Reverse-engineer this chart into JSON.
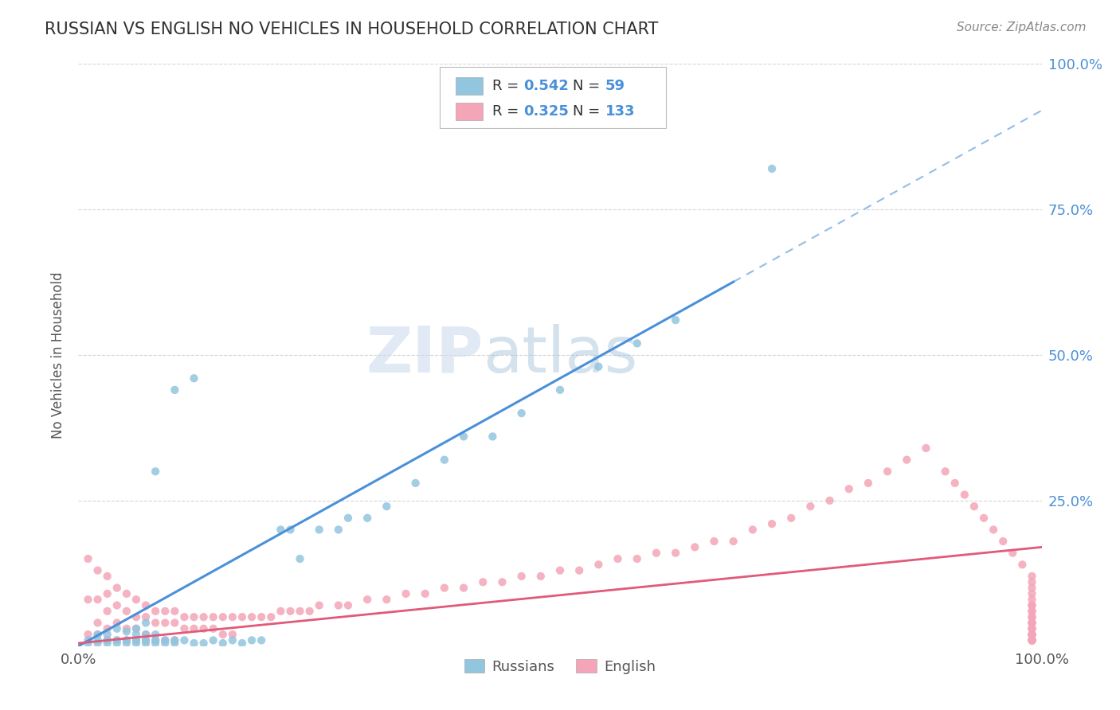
{
  "title": "RUSSIAN VS ENGLISH NO VEHICLES IN HOUSEHOLD CORRELATION CHART",
  "source": "Source: ZipAtlas.com",
  "ylabel": "No Vehicles in Household",
  "legend_label_russian": "Russians",
  "legend_label_english": "English",
  "color_russian": "#92C5DE",
  "color_english": "#F4A6B8",
  "color_trend_russian": "#4A90D9",
  "color_trend_english": "#E05A7A",
  "background_color": "#FFFFFF",
  "watermark_zip": "ZIP",
  "watermark_atlas": "atlas",
  "russian_x": [
    0.01,
    0.01,
    0.02,
    0.02,
    0.02,
    0.03,
    0.03,
    0.03,
    0.04,
    0.04,
    0.04,
    0.05,
    0.05,
    0.05,
    0.06,
    0.06,
    0.06,
    0.06,
    0.07,
    0.07,
    0.07,
    0.07,
    0.08,
    0.08,
    0.08,
    0.08,
    0.09,
    0.09,
    0.1,
    0.1,
    0.1,
    0.11,
    0.12,
    0.12,
    0.13,
    0.14,
    0.15,
    0.16,
    0.17,
    0.18,
    0.19,
    0.21,
    0.22,
    0.23,
    0.25,
    0.27,
    0.28,
    0.3,
    0.32,
    0.35,
    0.38,
    0.4,
    0.43,
    0.46,
    0.5,
    0.54,
    0.58,
    0.62,
    0.72
  ],
  "russian_y": [
    0.005,
    0.01,
    0.005,
    0.01,
    0.02,
    0.005,
    0.01,
    0.02,
    0.005,
    0.01,
    0.03,
    0.005,
    0.01,
    0.025,
    0.005,
    0.01,
    0.02,
    0.03,
    0.005,
    0.01,
    0.02,
    0.04,
    0.005,
    0.01,
    0.02,
    0.3,
    0.005,
    0.01,
    0.005,
    0.01,
    0.44,
    0.01,
    0.005,
    0.46,
    0.005,
    0.01,
    0.005,
    0.01,
    0.005,
    0.01,
    0.01,
    0.2,
    0.2,
    0.15,
    0.2,
    0.2,
    0.22,
    0.22,
    0.24,
    0.28,
    0.32,
    0.36,
    0.36,
    0.4,
    0.44,
    0.48,
    0.52,
    0.56,
    0.82
  ],
  "english_x": [
    0.01,
    0.01,
    0.01,
    0.02,
    0.02,
    0.02,
    0.02,
    0.03,
    0.03,
    0.03,
    0.03,
    0.03,
    0.04,
    0.04,
    0.04,
    0.04,
    0.05,
    0.05,
    0.05,
    0.05,
    0.06,
    0.06,
    0.06,
    0.06,
    0.07,
    0.07,
    0.07,
    0.07,
    0.08,
    0.08,
    0.08,
    0.09,
    0.09,
    0.09,
    0.1,
    0.1,
    0.1,
    0.11,
    0.11,
    0.12,
    0.12,
    0.13,
    0.13,
    0.14,
    0.14,
    0.15,
    0.15,
    0.16,
    0.16,
    0.17,
    0.18,
    0.19,
    0.2,
    0.21,
    0.22,
    0.23,
    0.24,
    0.25,
    0.27,
    0.28,
    0.3,
    0.32,
    0.34,
    0.36,
    0.38,
    0.4,
    0.42,
    0.44,
    0.46,
    0.48,
    0.5,
    0.52,
    0.54,
    0.56,
    0.58,
    0.6,
    0.62,
    0.64,
    0.66,
    0.68,
    0.7,
    0.72,
    0.74,
    0.76,
    0.78,
    0.8,
    0.82,
    0.84,
    0.86,
    0.88,
    0.9,
    0.91,
    0.92,
    0.93,
    0.94,
    0.95,
    0.96,
    0.97,
    0.98,
    0.99,
    0.99,
    0.99,
    0.99,
    0.99,
    0.99,
    0.99,
    0.99,
    0.99,
    0.99,
    0.99,
    0.99,
    0.99,
    0.99,
    0.99,
    0.99,
    0.99,
    0.99,
    0.99,
    0.99,
    0.99,
    0.99,
    0.99,
    0.99,
    0.99,
    0.99,
    0.99,
    0.99,
    0.99,
    0.99,
    0.99,
    0.99,
    0.99,
    0.99
  ],
  "english_y": [
    0.15,
    0.08,
    0.02,
    0.13,
    0.08,
    0.04,
    0.02,
    0.12,
    0.09,
    0.06,
    0.03,
    0.01,
    0.1,
    0.07,
    0.04,
    0.01,
    0.09,
    0.06,
    0.03,
    0.01,
    0.08,
    0.05,
    0.03,
    0.01,
    0.07,
    0.05,
    0.02,
    0.01,
    0.06,
    0.04,
    0.01,
    0.06,
    0.04,
    0.01,
    0.06,
    0.04,
    0.01,
    0.05,
    0.03,
    0.05,
    0.03,
    0.05,
    0.03,
    0.05,
    0.03,
    0.05,
    0.02,
    0.05,
    0.02,
    0.05,
    0.05,
    0.05,
    0.05,
    0.06,
    0.06,
    0.06,
    0.06,
    0.07,
    0.07,
    0.07,
    0.08,
    0.08,
    0.09,
    0.09,
    0.1,
    0.1,
    0.11,
    0.11,
    0.12,
    0.12,
    0.13,
    0.13,
    0.14,
    0.15,
    0.15,
    0.16,
    0.16,
    0.17,
    0.18,
    0.18,
    0.2,
    0.21,
    0.22,
    0.24,
    0.25,
    0.27,
    0.28,
    0.3,
    0.32,
    0.34,
    0.3,
    0.28,
    0.26,
    0.24,
    0.22,
    0.2,
    0.18,
    0.16,
    0.14,
    0.12,
    0.11,
    0.1,
    0.09,
    0.08,
    0.07,
    0.07,
    0.06,
    0.06,
    0.05,
    0.05,
    0.04,
    0.04,
    0.04,
    0.03,
    0.03,
    0.03,
    0.02,
    0.02,
    0.02,
    0.02,
    0.02,
    0.01,
    0.01,
    0.01,
    0.01,
    0.01,
    0.01,
    0.01,
    0.01,
    0.01,
    0.01,
    0.01,
    0.01
  ],
  "trend_russian_x0": 0.0,
  "trend_russian_y0": 0.0,
  "trend_russian_x1": 1.0,
  "trend_russian_y1": 0.92,
  "trend_english_x0": 0.0,
  "trend_english_y0": 0.005,
  "trend_english_x1": 1.0,
  "trend_english_y1": 0.17,
  "xlim": [
    0,
    1
  ],
  "ylim": [
    0,
    1
  ]
}
